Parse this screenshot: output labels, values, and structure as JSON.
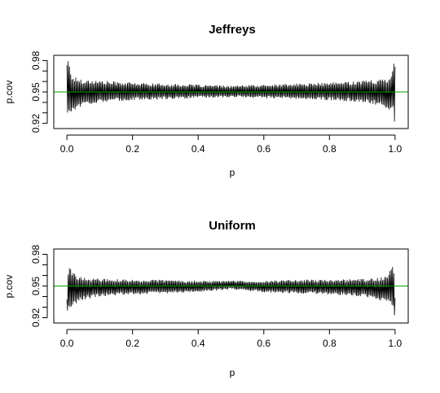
{
  "chart_data": [
    {
      "type": "line",
      "title": "Jeffreys",
      "xlabel": "p",
      "ylabel": "p.cov",
      "xlim": [
        -0.04,
        1.04
      ],
      "ylim": [
        0.915,
        0.985
      ],
      "xticks": [
        0.0,
        0.2,
        0.4,
        0.6,
        0.8,
        1.0
      ],
      "xtick_labels": [
        "0.0",
        "0.2",
        "0.4",
        "0.6",
        "0.8",
        "1.0"
      ],
      "yticks": [
        0.92,
        0.95,
        0.98
      ],
      "ytick_labels": [
        "0.92",
        "0.95",
        "0.98"
      ],
      "minor_yticks": [
        0.93,
        0.94,
        0.96,
        0.97
      ],
      "reference_line": {
        "y": 0.95,
        "color": "#00a000"
      },
      "series_color": "#000000",
      "envelope": {
        "x": [
          0.0,
          0.005,
          0.01,
          0.02,
          0.05,
          0.1,
          0.2,
          0.3,
          0.4,
          0.5,
          0.6,
          0.7,
          0.8,
          0.9,
          0.95,
          0.98,
          0.99,
          0.995,
          1.0
        ],
        "upper": [
          0.985,
          0.985,
          0.97,
          0.965,
          0.962,
          0.961,
          0.959,
          0.958,
          0.957,
          0.956,
          0.957,
          0.958,
          0.959,
          0.961,
          0.962,
          0.965,
          0.97,
          0.985,
          0.985
        ],
        "lower": [
          0.915,
          0.93,
          0.929,
          0.932,
          0.937,
          0.94,
          0.942,
          0.943,
          0.944,
          0.945,
          0.944,
          0.943,
          0.942,
          0.94,
          0.937,
          0.932,
          0.929,
          0.93,
          0.915
        ]
      }
    },
    {
      "type": "line",
      "title": "Uniform",
      "xlabel": "p",
      "ylabel": "p.cov",
      "xlim": [
        -0.04,
        1.04
      ],
      "ylim": [
        0.915,
        0.985
      ],
      "xticks": [
        0.0,
        0.2,
        0.4,
        0.6,
        0.8,
        1.0
      ],
      "xtick_labels": [
        "0.0",
        "0.2",
        "0.4",
        "0.6",
        "0.8",
        "1.0"
      ],
      "yticks": [
        0.92,
        0.95,
        0.98
      ],
      "ytick_labels": [
        "0.92",
        "0.95",
        "0.98"
      ],
      "minor_yticks": [
        0.93,
        0.94,
        0.96,
        0.97
      ],
      "reference_line": {
        "y": 0.95,
        "color": "#00a000"
      },
      "series_color": "#000000",
      "envelope": {
        "x": [
          0.0,
          0.005,
          0.01,
          0.02,
          0.05,
          0.1,
          0.2,
          0.3,
          0.4,
          0.5,
          0.6,
          0.7,
          0.8,
          0.9,
          0.95,
          0.98,
          0.99,
          0.995,
          1.0
        ],
        "upper": [
          0.94,
          0.97,
          0.968,
          0.962,
          0.958,
          0.957,
          0.956,
          0.956,
          0.955,
          0.955,
          0.955,
          0.956,
          0.956,
          0.957,
          0.958,
          0.962,
          0.968,
          0.97,
          0.94
        ],
        "lower": [
          0.92,
          0.925,
          0.928,
          0.932,
          0.937,
          0.94,
          0.942,
          0.943,
          0.944,
          0.947,
          0.944,
          0.943,
          0.942,
          0.94,
          0.937,
          0.932,
          0.928,
          0.925,
          0.92
        ]
      }
    }
  ]
}
